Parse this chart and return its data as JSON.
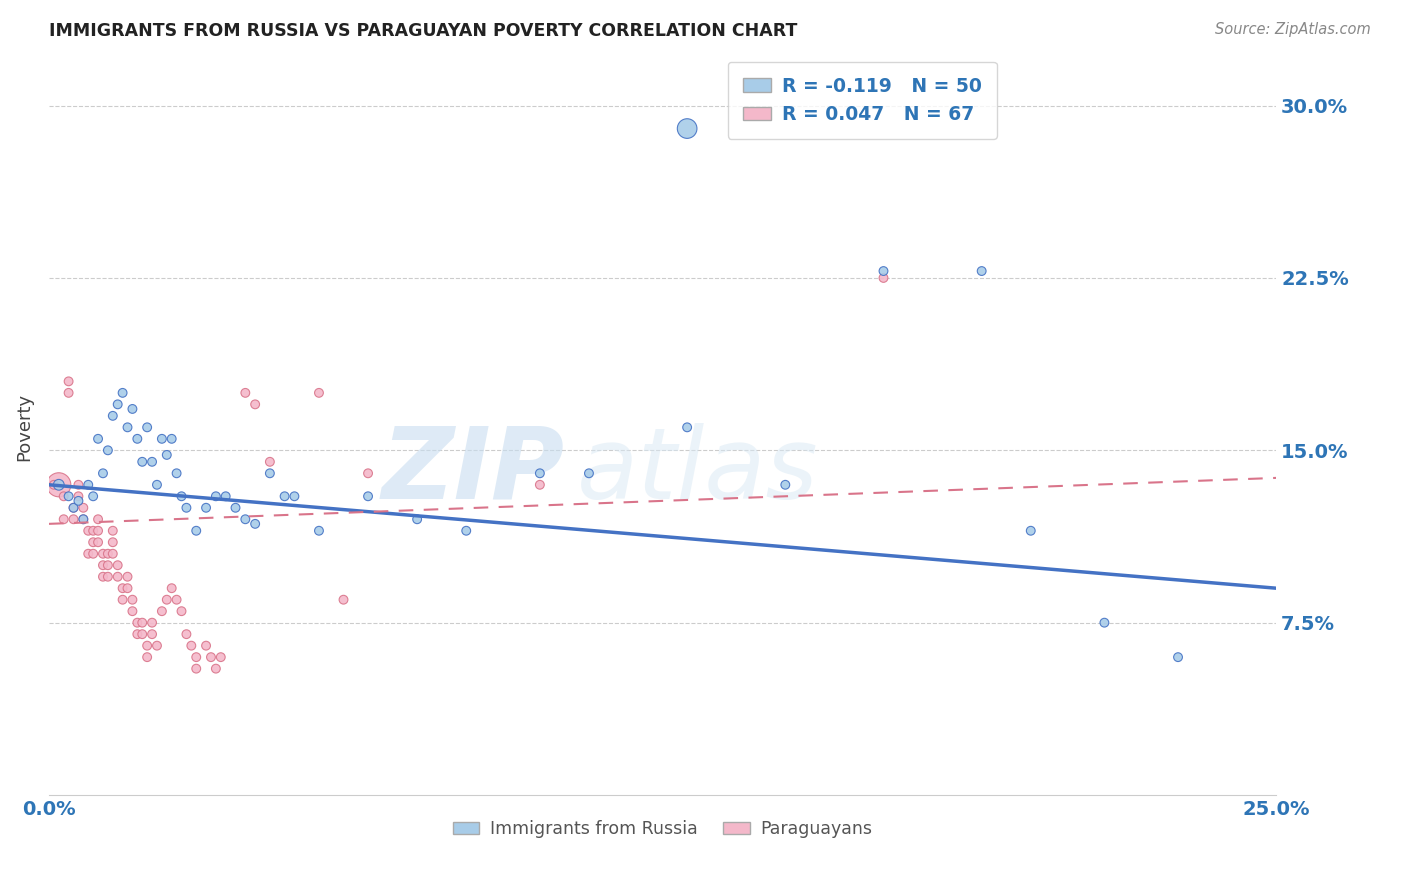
{
  "title": "IMMIGRANTS FROM RUSSIA VS PARAGUAYAN POVERTY CORRELATION CHART",
  "source": "Source: ZipAtlas.com",
  "ylabel": "Poverty",
  "yticks": [
    "7.5%",
    "15.0%",
    "22.5%",
    "30.0%"
  ],
  "ytick_vals": [
    0.075,
    0.15,
    0.225,
    0.3
  ],
  "xlim": [
    0.0,
    0.25
  ],
  "ylim": [
    0.0,
    0.32
  ],
  "color_blue": "#a8cce8",
  "color_pink": "#f4b8ca",
  "color_blue_line": "#4472c4",
  "color_pink_line": "#d9748a",
  "color_blue_text": "#2e75b6",
  "watermark_zip": "ZIP",
  "watermark_atlas": "atlas",
  "blue_scatter": [
    [
      0.002,
      0.135
    ],
    [
      0.004,
      0.13
    ],
    [
      0.005,
      0.125
    ],
    [
      0.006,
      0.128
    ],
    [
      0.007,
      0.12
    ],
    [
      0.008,
      0.135
    ],
    [
      0.009,
      0.13
    ],
    [
      0.01,
      0.155
    ],
    [
      0.011,
      0.14
    ],
    [
      0.012,
      0.15
    ],
    [
      0.013,
      0.165
    ],
    [
      0.014,
      0.17
    ],
    [
      0.015,
      0.175
    ],
    [
      0.016,
      0.16
    ],
    [
      0.017,
      0.168
    ],
    [
      0.018,
      0.155
    ],
    [
      0.019,
      0.145
    ],
    [
      0.02,
      0.16
    ],
    [
      0.021,
      0.145
    ],
    [
      0.022,
      0.135
    ],
    [
      0.023,
      0.155
    ],
    [
      0.024,
      0.148
    ],
    [
      0.025,
      0.155
    ],
    [
      0.026,
      0.14
    ],
    [
      0.027,
      0.13
    ],
    [
      0.028,
      0.125
    ],
    [
      0.03,
      0.115
    ],
    [
      0.032,
      0.125
    ],
    [
      0.034,
      0.13
    ],
    [
      0.036,
      0.13
    ],
    [
      0.038,
      0.125
    ],
    [
      0.04,
      0.12
    ],
    [
      0.042,
      0.118
    ],
    [
      0.045,
      0.14
    ],
    [
      0.048,
      0.13
    ],
    [
      0.05,
      0.13
    ],
    [
      0.055,
      0.115
    ],
    [
      0.065,
      0.13
    ],
    [
      0.075,
      0.12
    ],
    [
      0.085,
      0.115
    ],
    [
      0.1,
      0.14
    ],
    [
      0.11,
      0.14
    ],
    [
      0.13,
      0.16
    ],
    [
      0.15,
      0.135
    ],
    [
      0.17,
      0.228
    ],
    [
      0.19,
      0.228
    ],
    [
      0.2,
      0.115
    ],
    [
      0.215,
      0.075
    ],
    [
      0.13,
      0.29
    ],
    [
      0.23,
      0.06
    ]
  ],
  "blue_sizes": [
    60,
    40,
    40,
    40,
    40,
    40,
    40,
    40,
    40,
    40,
    40,
    40,
    40,
    40,
    40,
    40,
    40,
    40,
    40,
    40,
    40,
    40,
    40,
    40,
    40,
    40,
    40,
    40,
    40,
    40,
    40,
    40,
    40,
    40,
    40,
    40,
    40,
    40,
    40,
    40,
    40,
    40,
    40,
    40,
    40,
    40,
    40,
    40,
    200,
    40
  ],
  "pink_scatter": [
    [
      0.002,
      0.135
    ],
    [
      0.003,
      0.13
    ],
    [
      0.003,
      0.12
    ],
    [
      0.004,
      0.18
    ],
    [
      0.004,
      0.175
    ],
    [
      0.005,
      0.125
    ],
    [
      0.005,
      0.12
    ],
    [
      0.006,
      0.135
    ],
    [
      0.006,
      0.13
    ],
    [
      0.007,
      0.125
    ],
    [
      0.007,
      0.12
    ],
    [
      0.008,
      0.115
    ],
    [
      0.008,
      0.105
    ],
    [
      0.009,
      0.115
    ],
    [
      0.009,
      0.11
    ],
    [
      0.009,
      0.105
    ],
    [
      0.01,
      0.12
    ],
    [
      0.01,
      0.115
    ],
    [
      0.01,
      0.11
    ],
    [
      0.011,
      0.105
    ],
    [
      0.011,
      0.1
    ],
    [
      0.011,
      0.095
    ],
    [
      0.012,
      0.105
    ],
    [
      0.012,
      0.1
    ],
    [
      0.012,
      0.095
    ],
    [
      0.013,
      0.115
    ],
    [
      0.013,
      0.11
    ],
    [
      0.013,
      0.105
    ],
    [
      0.014,
      0.1
    ],
    [
      0.014,
      0.095
    ],
    [
      0.015,
      0.09
    ],
    [
      0.015,
      0.085
    ],
    [
      0.016,
      0.095
    ],
    [
      0.016,
      0.09
    ],
    [
      0.017,
      0.085
    ],
    [
      0.017,
      0.08
    ],
    [
      0.018,
      0.075
    ],
    [
      0.018,
      0.07
    ],
    [
      0.019,
      0.075
    ],
    [
      0.019,
      0.07
    ],
    [
      0.02,
      0.065
    ],
    [
      0.02,
      0.06
    ],
    [
      0.021,
      0.075
    ],
    [
      0.021,
      0.07
    ],
    [
      0.022,
      0.065
    ],
    [
      0.023,
      0.08
    ],
    [
      0.024,
      0.085
    ],
    [
      0.025,
      0.09
    ],
    [
      0.026,
      0.085
    ],
    [
      0.027,
      0.08
    ],
    [
      0.028,
      0.07
    ],
    [
      0.029,
      0.065
    ],
    [
      0.03,
      0.06
    ],
    [
      0.03,
      0.055
    ],
    [
      0.032,
      0.065
    ],
    [
      0.033,
      0.06
    ],
    [
      0.034,
      0.055
    ],
    [
      0.035,
      0.06
    ],
    [
      0.04,
      0.175
    ],
    [
      0.042,
      0.17
    ],
    [
      0.045,
      0.145
    ],
    [
      0.055,
      0.175
    ],
    [
      0.06,
      0.085
    ],
    [
      0.065,
      0.14
    ],
    [
      0.1,
      0.135
    ],
    [
      0.17,
      0.225
    ],
    [
      0.001,
      0.135
    ]
  ],
  "pink_sizes": [
    300,
    40,
    40,
    40,
    40,
    40,
    40,
    40,
    40,
    40,
    40,
    40,
    40,
    40,
    40,
    40,
    40,
    40,
    40,
    40,
    40,
    40,
    40,
    40,
    40,
    40,
    40,
    40,
    40,
    40,
    40,
    40,
    40,
    40,
    40,
    40,
    40,
    40,
    40,
    40,
    40,
    40,
    40,
    40,
    40,
    40,
    40,
    40,
    40,
    40,
    40,
    40,
    40,
    40,
    40,
    40,
    40,
    40,
    40,
    40,
    40,
    40,
    40,
    40,
    40,
    40,
    40
  ],
  "blue_line_x": [
    0.0,
    0.25
  ],
  "blue_line_y": [
    0.135,
    0.09
  ],
  "pink_line_x": [
    0.0,
    0.25
  ],
  "pink_line_y": [
    0.118,
    0.138
  ]
}
